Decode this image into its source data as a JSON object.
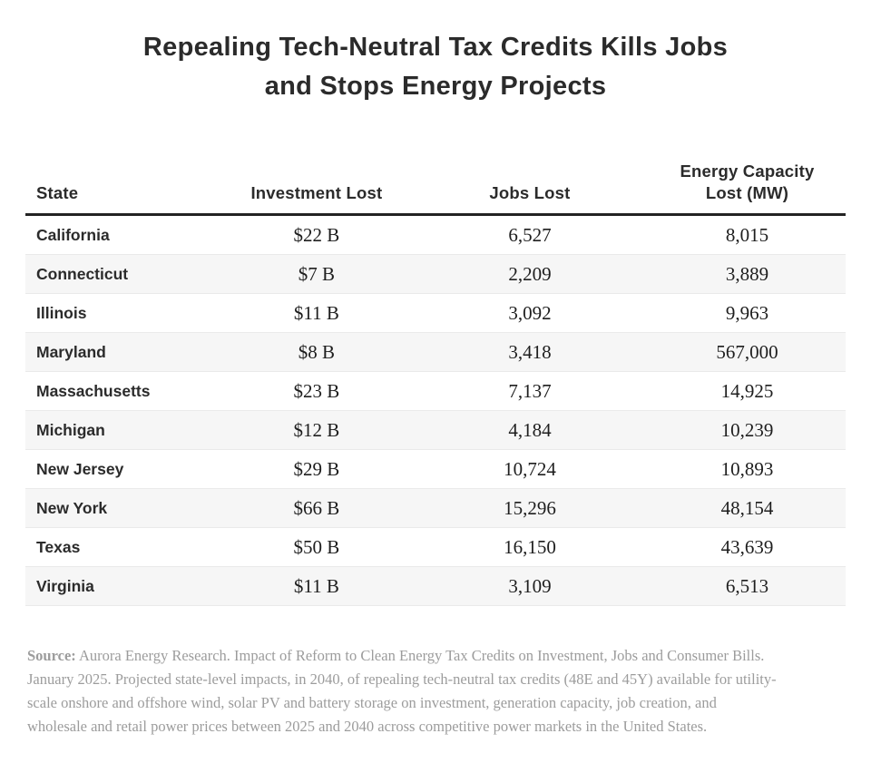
{
  "page": {
    "title": "Repealing Tech-Neutral Tax Credits Kills Jobs\nand Stops Energy Projects"
  },
  "table": {
    "columns": [
      "State",
      "Investment Lost",
      "Jobs Lost",
      "Energy Capacity\nLost (MW)"
    ],
    "rows": [
      [
        "California",
        "$22 B",
        "6,527",
        "8,015"
      ],
      [
        "Connecticut",
        "$7 B",
        "2,209",
        "3,889"
      ],
      [
        "Illinois",
        "$11 B",
        "3,092",
        "9,963"
      ],
      [
        "Maryland",
        "$8 B",
        "3,418",
        "567,000"
      ],
      [
        "Massachusetts",
        "$23 B",
        "7,137",
        "14,925"
      ],
      [
        "Michigan",
        "$12 B",
        "4,184",
        "10,239"
      ],
      [
        "New Jersey",
        "$29 B",
        "10,724",
        "10,893"
      ],
      [
        "New York",
        "$66 B",
        "15,296",
        "48,154"
      ],
      [
        "Texas",
        "$50 B",
        "16,150",
        "43,639"
      ],
      [
        "Virginia",
        "$11 B",
        "3,109",
        "6,513"
      ]
    ]
  },
  "footnote": {
    "label": "Source:",
    "text": " Aurora Energy Research. Impact of Reform to Clean Energy Tax Credits on Investment, Jobs and Consumer Bills.\nJanuary 2025. Projected state-level impacts, in 2040, of repealing tech-neutral tax credits (48E and 45Y) available for utility-\nscale onshore and offshore wind, solar PV and battery storage on investment, generation capacity, job creation, and\nwholesale and retail power prices between 2025 and 2040 across competitive power markets in the United States."
  },
  "colors": {
    "title_text": "#2b2b2b",
    "number_text": "#1e1e1e",
    "header_rule": "#232323",
    "row_stripe": "#f6f6f6",
    "row_stripe_edge": "#eaeaea",
    "footnote_text": "#9c9c9c",
    "background": "#ffffff"
  },
  "chart_data": {
    "type": "table",
    "title": "Repealing Tech-Neutral Tax Credits Kills Jobs and Stops Energy Projects",
    "columns": [
      "State",
      "Investment Lost ($B)",
      "Jobs Lost",
      "Energy Capacity Lost (MW)"
    ],
    "rows": [
      {
        "state": "California",
        "investment_lost_billions": 22,
        "jobs_lost": 6527,
        "energy_capacity_lost_mw": 8015
      },
      {
        "state": "Connecticut",
        "investment_lost_billions": 7,
        "jobs_lost": 2209,
        "energy_capacity_lost_mw": 3889
      },
      {
        "state": "Illinois",
        "investment_lost_billions": 11,
        "jobs_lost": 3092,
        "energy_capacity_lost_mw": 9963
      },
      {
        "state": "Maryland",
        "investment_lost_billions": 8,
        "jobs_lost": 3418,
        "energy_capacity_lost_mw": 567000
      },
      {
        "state": "Massachusetts",
        "investment_lost_billions": 23,
        "jobs_lost": 7137,
        "energy_capacity_lost_mw": 14925
      },
      {
        "state": "Michigan",
        "investment_lost_billions": 12,
        "jobs_lost": 4184,
        "energy_capacity_lost_mw": 10239
      },
      {
        "state": "New Jersey",
        "investment_lost_billions": 29,
        "jobs_lost": 10724,
        "energy_capacity_lost_mw": 10893
      },
      {
        "state": "New York",
        "investment_lost_billions": 66,
        "jobs_lost": 15296,
        "energy_capacity_lost_mw": 48154
      },
      {
        "state": "Texas",
        "investment_lost_billions": 50,
        "jobs_lost": 16150,
        "energy_capacity_lost_mw": 43639
      },
      {
        "state": "Virginia",
        "investment_lost_billions": 11,
        "jobs_lost": 3109,
        "energy_capacity_lost_mw": 6513
      }
    ],
    "source_note": "Source: Aurora Energy Research. Impact of Reform to Clean Energy Tax Credits on Investment, Jobs and Consumer Bills. January 2025. Projected state-level impacts, in 2040, of repealing tech-neutral tax credits (48E and 45Y) available for utility-scale onshore and offshore wind, solar PV and battery storage on investment, generation capacity, job creation, and wholesale and retail power prices between 2025 and 2040 across competitive power markets in the United States.",
    "layout": {
      "grid": false,
      "row_striping": "even-rows-gray",
      "alignment": {
        "state": "left",
        "values": "center"
      }
    }
  }
}
